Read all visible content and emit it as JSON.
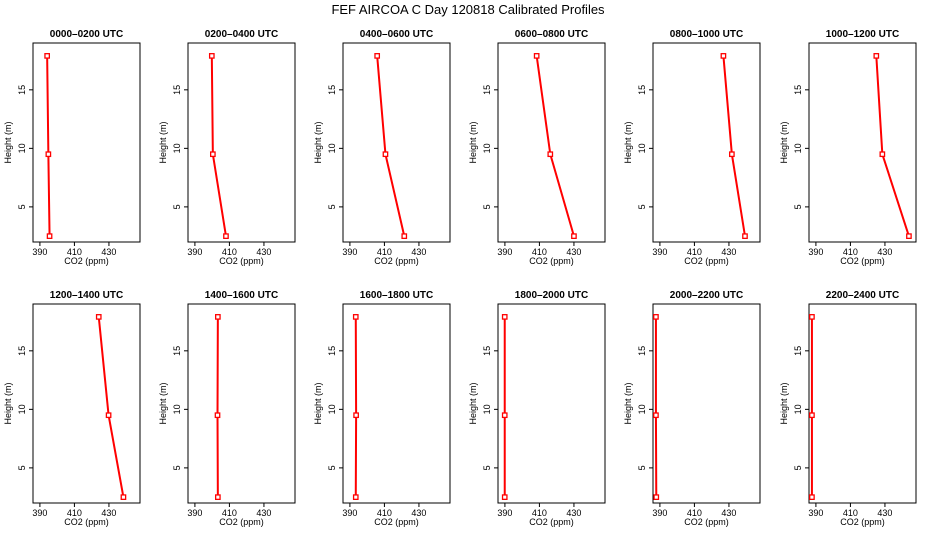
{
  "title": "FEF AIRCOA C  Day 120818  Calibrated Profiles",
  "colors": {
    "profile": "#ff0000",
    "axes": "#000000"
  },
  "chart_data": [
    {
      "type": "line",
      "title": "0000–0200 UTC",
      "xlabel": "CO2 (ppm)",
      "ylabel": "Height (m)",
      "xlim": [
        386,
        448
      ],
      "ylim": [
        2,
        19
      ],
      "xticks": [
        390,
        410,
        430
      ],
      "yticks": [
        5,
        10,
        15
      ],
      "grid": false,
      "x": [
        394.2,
        394.9,
        395.6
      ],
      "y": [
        17.9,
        9.5,
        2.5
      ]
    },
    {
      "type": "line",
      "title": "0200–0400 UTC",
      "xlabel": "CO2 (ppm)",
      "ylabel": "Height (m)",
      "xlim": [
        386,
        448
      ],
      "ylim": [
        2,
        19
      ],
      "xticks": [
        390,
        410,
        430
      ],
      "yticks": [
        5,
        10,
        15
      ],
      "grid": false,
      "x": [
        399.8,
        400.4,
        408.0
      ],
      "y": [
        17.9,
        9.5,
        2.5
      ]
    },
    {
      "type": "line",
      "title": "0400–0600 UTC",
      "xlabel": "CO2 (ppm)",
      "ylabel": "Height (m)",
      "xlim": [
        386,
        448
      ],
      "ylim": [
        2,
        19
      ],
      "xticks": [
        390,
        410,
        430
      ],
      "yticks": [
        5,
        10,
        15
      ],
      "grid": false,
      "x": [
        405.8,
        410.6,
        421.5
      ],
      "y": [
        17.9,
        9.5,
        2.5
      ]
    },
    {
      "type": "line",
      "title": "0600–0800 UTC",
      "xlabel": "CO2 (ppm)",
      "ylabel": "Height (m)",
      "xlim": [
        386,
        448
      ],
      "ylim": [
        2,
        19
      ],
      "xticks": [
        390,
        410,
        430
      ],
      "yticks": [
        5,
        10,
        15
      ],
      "grid": false,
      "x": [
        408.4,
        416.3,
        430.0
      ],
      "y": [
        17.9,
        9.5,
        2.5
      ]
    },
    {
      "type": "line",
      "title": "0800–1000 UTC",
      "xlabel": "CO2 (ppm)",
      "ylabel": "Height (m)",
      "xlim": [
        386,
        448
      ],
      "ylim": [
        2,
        19
      ],
      "xticks": [
        390,
        410,
        430
      ],
      "yticks": [
        5,
        10,
        15
      ],
      "grid": false,
      "x": [
        426.8,
        431.7,
        439.3
      ],
      "y": [
        17.9,
        9.5,
        2.5
      ]
    },
    {
      "type": "line",
      "title": "1000–1200 UTC",
      "xlabel": "CO2 (ppm)",
      "ylabel": "Height (m)",
      "xlim": [
        386,
        448
      ],
      "ylim": [
        2,
        19
      ],
      "xticks": [
        390,
        410,
        430
      ],
      "yticks": [
        5,
        10,
        15
      ],
      "grid": false,
      "x": [
        425.0,
        428.5,
        443.9
      ],
      "y": [
        17.9,
        9.5,
        2.5
      ]
    },
    {
      "type": "line",
      "title": "1200–1400 UTC",
      "xlabel": "CO2 (ppm)",
      "ylabel": "Height (m)",
      "xlim": [
        386,
        448
      ],
      "ylim": [
        2,
        19
      ],
      "xticks": [
        390,
        410,
        430
      ],
      "yticks": [
        5,
        10,
        15
      ],
      "grid": false,
      "x": [
        424.1,
        429.8,
        438.4
      ],
      "y": [
        17.9,
        9.5,
        2.5
      ]
    },
    {
      "type": "line",
      "title": "1400–1600 UTC",
      "xlabel": "CO2 (ppm)",
      "ylabel": "Height (m)",
      "xlim": [
        386,
        448
      ],
      "ylim": [
        2,
        19
      ],
      "xticks": [
        390,
        410,
        430
      ],
      "yticks": [
        5,
        10,
        15
      ],
      "grid": false,
      "x": [
        403.3,
        403.1,
        403.3
      ],
      "y": [
        17.9,
        9.5,
        2.5
      ]
    },
    {
      "type": "line",
      "title": "1600–1800 UTC",
      "xlabel": "CO2 (ppm)",
      "ylabel": "Height (m)",
      "xlim": [
        386,
        448
      ],
      "ylim": [
        2,
        19
      ],
      "xticks": [
        390,
        410,
        430
      ],
      "yticks": [
        5,
        10,
        15
      ],
      "grid": false,
      "x": [
        393.4,
        393.6,
        393.4
      ],
      "y": [
        17.9,
        9.5,
        2.5
      ]
    },
    {
      "type": "line",
      "title": "1800–2000 UTC",
      "xlabel": "CO2 (ppm)",
      "ylabel": "Height (m)",
      "xlim": [
        386,
        448
      ],
      "ylim": [
        2,
        19
      ],
      "xticks": [
        390,
        410,
        430
      ],
      "yticks": [
        5,
        10,
        15
      ],
      "grid": false,
      "x": [
        389.9,
        389.9,
        389.9
      ],
      "y": [
        17.9,
        9.5,
        2.5
      ]
    },
    {
      "type": "line",
      "title": "2000–2200 UTC",
      "xlabel": "CO2 (ppm)",
      "ylabel": "Height (m)",
      "xlim": [
        386,
        448
      ],
      "ylim": [
        2,
        19
      ],
      "xticks": [
        390,
        410,
        430
      ],
      "yticks": [
        5,
        10,
        15
      ],
      "grid": false,
      "x": [
        387.7,
        387.7,
        387.9
      ],
      "y": [
        17.9,
        9.5,
        2.5
      ]
    },
    {
      "type": "line",
      "title": "2200–2400 UTC",
      "xlabel": "CO2 (ppm)",
      "ylabel": "Height (m)",
      "xlim": [
        386,
        448
      ],
      "ylim": [
        2,
        19
      ],
      "xticks": [
        390,
        410,
        430
      ],
      "yticks": [
        5,
        10,
        15
      ],
      "grid": false,
      "x": [
        387.7,
        387.7,
        387.7
      ],
      "y": [
        17.9,
        9.5,
        2.5
      ]
    }
  ]
}
